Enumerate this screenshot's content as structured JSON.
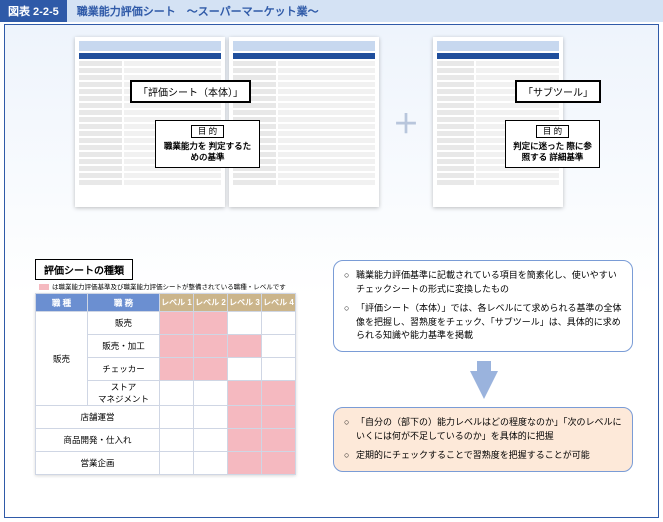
{
  "colors": {
    "header_bg": "#2f5aa8",
    "header_title_bg": "#d4e2f4",
    "frame_border": "#2f5aa8",
    "pink": "#f5b9c0",
    "th_blue": "#6b8fd1",
    "th_tan": "#cbb58b",
    "callout_border": "#7a9cd6",
    "callout2_bg": "#fde9d9",
    "arrow": "#9ab3dd",
    "plus": "#b8c6dc"
  },
  "header": {
    "number": "図表 2-2-5",
    "title": "職業能力評価シート　〜スーパーマーケット業〜"
  },
  "overlay": {
    "main_label": "「評価シート（本体）」",
    "sub_label": "「サブツール」",
    "purpose_label": "目 的",
    "main_purpose": "職業能力を\n判定するための基準",
    "sub_purpose": "判定に迷った\n際に参照する\n詳細基準",
    "plus": "＋"
  },
  "types": {
    "heading": "評価シートの種類",
    "note": "は職業能力評価基準及び職業能力評価シートが整備されている職種・レベルです",
    "columns": {
      "cat": "職 種",
      "job": "職 務",
      "lv1": "レベル 1",
      "lv2": "レベル 2",
      "lv3": "レベル 3",
      "lv4": "レベル 4"
    },
    "rows": [
      {
        "cat": "販売",
        "job": "販売",
        "lv": [
          "p",
          "p",
          "",
          ""
        ]
      },
      {
        "cat": "",
        "job": "販売・加工",
        "lv": [
          "p",
          "p",
          "p",
          ""
        ]
      },
      {
        "cat": "",
        "job": "チェッカー",
        "lv": [
          "p",
          "p",
          "",
          ""
        ]
      },
      {
        "cat": "",
        "job": "ストア\nマネジメント",
        "lv": [
          "",
          "",
          "p",
          "p"
        ]
      },
      {
        "cat": "店舗運営",
        "job": "",
        "lv": [
          "",
          "",
          "p",
          "p"
        ]
      },
      {
        "cat": "商品開発・仕入れ",
        "job": "",
        "lv": [
          "",
          "",
          "p",
          "p"
        ]
      },
      {
        "cat": "営業企画",
        "job": "",
        "lv": [
          "",
          "",
          "p",
          "p"
        ]
      }
    ],
    "cat_rowspan_first": 4
  },
  "callouts": {
    "c1_b1": "職業能力評価基準に記載されている項目を簡素化し、使いやすいチェックシートの形式に変換したもの",
    "c1_b2": "「評価シート（本体）」では、各レベルにて求められる基準の全体像を把握し、習熟度をチェック、「サブツール」は、具体的に求められる知識や能力基準を掲載",
    "c2_b1": "「自分の（部下の）能力レベルはどの程度なのか」「次のレベルにいくには何が不足しているのか」を具体的に把握",
    "c2_b2": "定期的にチェックすることで習熟度を把握することが可能"
  }
}
